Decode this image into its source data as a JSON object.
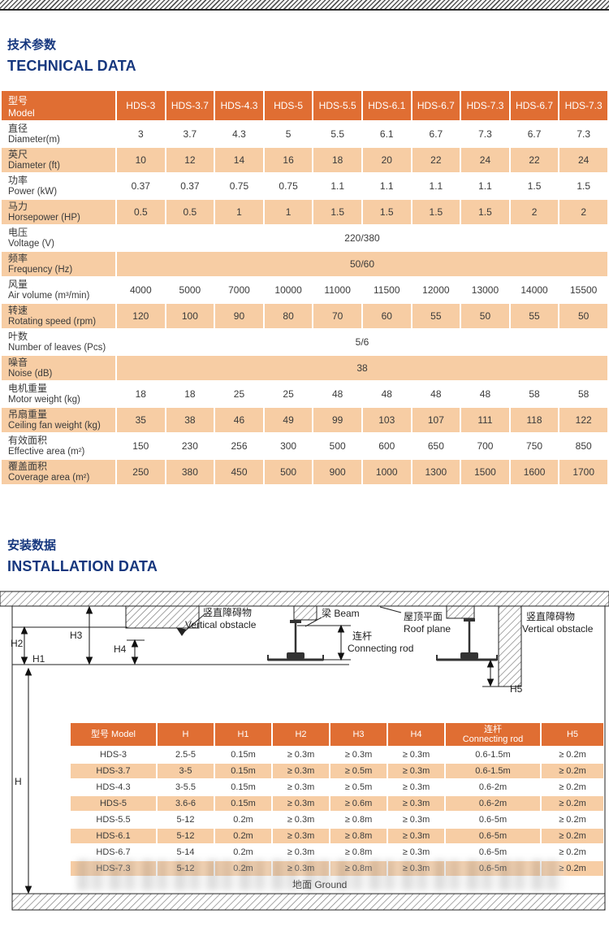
{
  "colors": {
    "header_orange": "#E06E33",
    "row_orange": "#F7CDA4",
    "title_blue": "#16377E"
  },
  "sections": {
    "technical": {
      "title_zh": "技术参数",
      "title_en": "TECHNICAL DATA"
    },
    "installation": {
      "title_zh": "安装数据",
      "title_en": "INSTALLATION DATA"
    }
  },
  "tech_table": {
    "corner": {
      "zh": "型号",
      "en": "Model"
    },
    "models": [
      "HDS-3",
      "HDS-3.7",
      "HDS-4.3",
      "HDS-5",
      "HDS-5.5",
      "HDS-6.1",
      "HDS-6.7",
      "HDS-7.3",
      "HDS-6.7",
      "HDS-7.3"
    ],
    "rows": [
      {
        "zh": "直径",
        "en": "Diameter(m)",
        "values": [
          "3",
          "3.7",
          "4.3",
          "5",
          "5.5",
          "6.1",
          "6.7",
          "7.3",
          "6.7",
          "7.3"
        ]
      },
      {
        "zh": "英尺",
        "en": "Diameter (ft)",
        "values": [
          "10",
          "12",
          "14",
          "16",
          "18",
          "20",
          "22",
          "24",
          "22",
          "24"
        ]
      },
      {
        "zh": "功率",
        "en": "Power (kW)",
        "values": [
          "0.37",
          "0.37",
          "0.75",
          "0.75",
          "1.1",
          "1.1",
          "1.1",
          "1.1",
          "1.5",
          "1.5"
        ]
      },
      {
        "zh": "马力",
        "en": "Horsepower (HP)",
        "values": [
          "0.5",
          "0.5",
          "1",
          "1",
          "1.5",
          "1.5",
          "1.5",
          "1.5",
          "2",
          "2"
        ]
      },
      {
        "zh": "电压",
        "en": "Voltage (V)",
        "span": "220/380"
      },
      {
        "zh": "频率",
        "en": "Frequency (Hz)",
        "span": "50/60"
      },
      {
        "zh": "风量",
        "en": "Air volume (m³/min)",
        "values": [
          "4000",
          "5000",
          "7000",
          "10000",
          "11000",
          "11500",
          "12000",
          "13000",
          "14000",
          "15500"
        ]
      },
      {
        "zh": "转速",
        "en": "Rotating speed (rpm)",
        "values": [
          "120",
          "100",
          "90",
          "80",
          "70",
          "60",
          "55",
          "50",
          "55",
          "50"
        ]
      },
      {
        "zh": "叶数",
        "en": "Number of leaves (Pcs)",
        "span": "5/6"
      },
      {
        "zh": "噪音",
        "en": "Noise (dB)",
        "span": "38"
      },
      {
        "zh": "电机重量",
        "en": "Motor weight (kg)",
        "values": [
          "18",
          "18",
          "25",
          "25",
          "48",
          "48",
          "48",
          "48",
          "58",
          "58"
        ]
      },
      {
        "zh": "吊扇重量",
        "en": "Ceiling fan weight (kg)",
        "values": [
          "35",
          "38",
          "46",
          "49",
          "99",
          "103",
          "107",
          "111",
          "118",
          "122"
        ]
      },
      {
        "zh": "有效面积",
        "en": "Effective area (m²)",
        "values": [
          "150",
          "230",
          "256",
          "300",
          "500",
          "600",
          "650",
          "700",
          "750",
          "850"
        ]
      },
      {
        "zh": "覆盖面积",
        "en": "Coverage area (m²)",
        "values": [
          "250",
          "380",
          "450",
          "500",
          "900",
          "1000",
          "1300",
          "1500",
          "1600",
          "1700"
        ]
      }
    ]
  },
  "diagram": {
    "vertical_obstacle_zh": "竖直障碍物",
    "vertical_obstacle_en": "Vertical obstacle",
    "beam": "梁 Beam",
    "roof_plane_zh": "屋顶平面",
    "roof_plane_en": "Roof plane",
    "connecting_rod_zh": "连杆",
    "connecting_rod_en": "Connecting rod",
    "ground": "地面 Ground",
    "dims": {
      "h": "H",
      "h1": "H1",
      "h2": "H2",
      "h3": "H3",
      "h4": "H4",
      "h5": "H5"
    }
  },
  "install_table": {
    "headers": [
      {
        "label": "型号 Model"
      },
      {
        "label": "H"
      },
      {
        "label": "H1"
      },
      {
        "label": "H2"
      },
      {
        "label": "H3"
      },
      {
        "label": "H4"
      },
      {
        "label_zh": "连杆",
        "label_en": "Connecting rod"
      },
      {
        "label": "H5"
      }
    ],
    "rows": [
      [
        "HDS-3",
        "2.5-5",
        "0.15m",
        "≥ 0.3m",
        "≥ 0.3m",
        "≥ 0.3m",
        "0.6-1.5m",
        "≥ 0.2m"
      ],
      [
        "HDS-3.7",
        "3-5",
        "0.15m",
        "≥ 0.3m",
        "≥ 0.5m",
        "≥ 0.3m",
        "0.6-1.5m",
        "≥ 0.2m"
      ],
      [
        "HDS-4.3",
        "3-5.5",
        "0.15m",
        "≥ 0.3m",
        "≥ 0.5m",
        "≥ 0.3m",
        "0.6-2m",
        "≥ 0.2m"
      ],
      [
        "HDS-5",
        "3.6-6",
        "0.15m",
        "≥ 0.3m",
        "≥ 0.6m",
        "≥ 0.3m",
        "0.6-2m",
        "≥ 0.2m"
      ],
      [
        "HDS-5.5",
        "5-12",
        "0.2m",
        "≥ 0.3m",
        "≥ 0.8m",
        "≥ 0.3m",
        "0.6-5m",
        "≥ 0.2m"
      ],
      [
        "HDS-6.1",
        "5-12",
        "0.2m",
        "≥ 0.3m",
        "≥ 0.8m",
        "≥ 0.3m",
        "0.6-5m",
        "≥ 0.2m"
      ],
      [
        "HDS-6.7",
        "5-14",
        "0.2m",
        "≥ 0.3m",
        "≥ 0.8m",
        "≥ 0.3m",
        "0.6-5m",
        "≥ 0.2m"
      ],
      [
        "HDS-7.3",
        "5-12",
        "0.2m",
        "≥ 0.3m",
        "≥ 0.8m",
        "≥ 0.3m",
        "0.6-5m",
        "≥ 0.2m"
      ]
    ]
  }
}
